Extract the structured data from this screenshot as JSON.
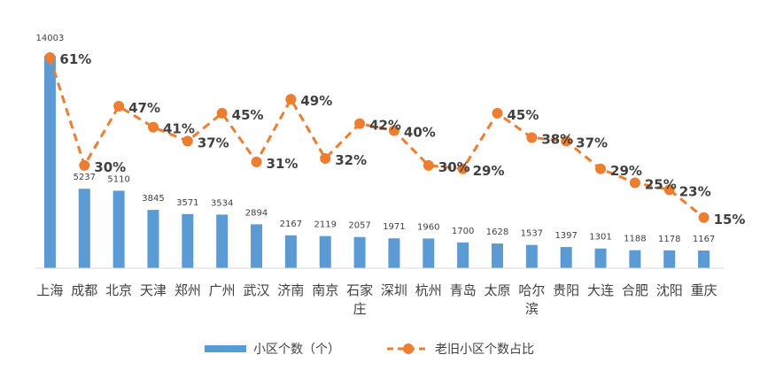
{
  "chart_data": {
    "type": "bar",
    "categories": [
      "上海",
      "成都",
      "北京",
      "天津",
      "郑州",
      "广州",
      "武汉",
      "济南",
      "南京",
      "石家庄",
      "深圳",
      "杭州",
      "青岛",
      "太原",
      "哈尔滨",
      "贵阳",
      "大连",
      "合肥",
      "沈阳",
      "重庆"
    ],
    "series": [
      {
        "name": "小区个数（个）",
        "type": "bar",
        "values": [
          14003,
          5237,
          5110,
          3845,
          3571,
          3534,
          2894,
          2167,
          2119,
          2057,
          1971,
          1960,
          1700,
          1628,
          1537,
          1397,
          1301,
          1188,
          1178,
          1167
        ],
        "labels": [
          "14003",
          "5237",
          "5110",
          "3845",
          "3571",
          "3534",
          "2894",
          "2167",
          "2119",
          "2057",
          "1971",
          "1960",
          "1700",
          "1628",
          "1537",
          "1397",
          "1301",
          "1188",
          "1178",
          "1167"
        ],
        "color": "#5b9bd5"
      },
      {
        "name": "老旧小区个数占比",
        "type": "line",
        "values": [
          61,
          30,
          47,
          41,
          37,
          45,
          31,
          49,
          32,
          42,
          40,
          30,
          29,
          45,
          38,
          37,
          29,
          25,
          23,
          15
        ],
        "labels": [
          "61%",
          "30%",
          "47%",
          "41%",
          "37%",
          "45%",
          "31%",
          "49%",
          "32%",
          "42%",
          "40%",
          "30%",
          "29%",
          "45%",
          "38%",
          "37%",
          "29%",
          "25%",
          "23%",
          "15%"
        ],
        "color": "#ed7d31",
        "style": "dashed"
      }
    ],
    "legend": {
      "position": "bottom"
    },
    "grid": false
  }
}
